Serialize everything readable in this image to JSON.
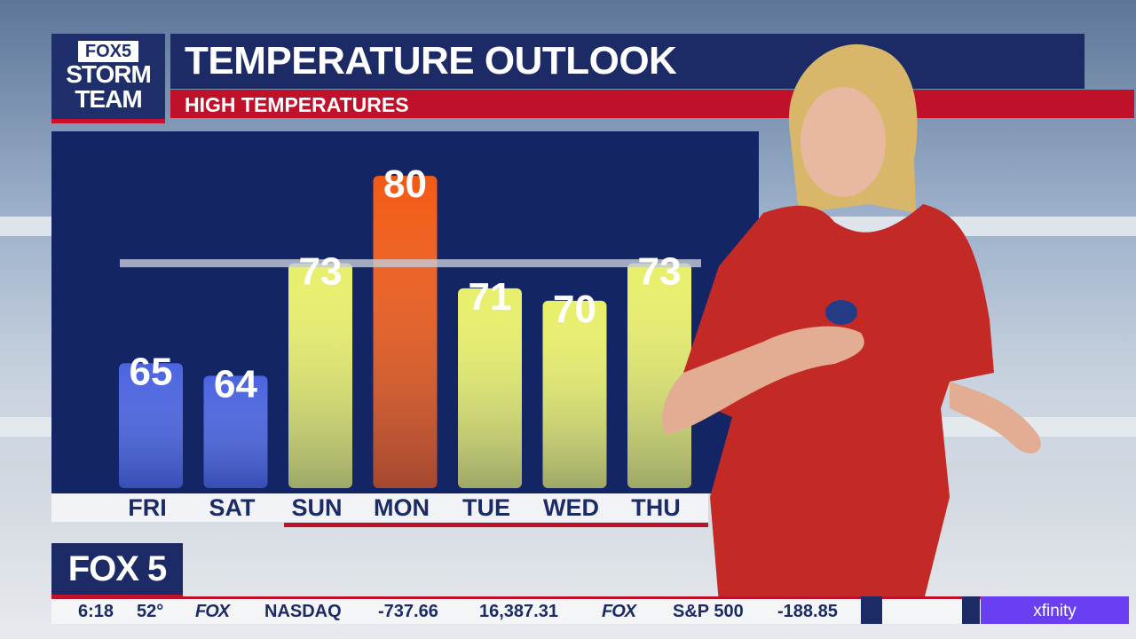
{
  "brand": {
    "fox5": "FOX5",
    "storm": "STORM",
    "team": "TEAM",
    "bug": "FOX 5"
  },
  "header": {
    "title": "TEMPERATURE OUTLOOK",
    "subtitle": "HIGH TEMPERATURES"
  },
  "chart_data": {
    "type": "bar",
    "title": "TEMPERATURE OUTLOOK",
    "subtitle": "HIGH TEMPERATURES",
    "categories": [
      "FRI",
      "SAT",
      "SUN",
      "MON",
      "TUE",
      "WED",
      "THU"
    ],
    "values": [
      65,
      64,
      73,
      80,
      71,
      70,
      73
    ],
    "bar_colors": [
      "#4a63e0",
      "#4a63e0",
      "#e8ef6a",
      "#f25a14",
      "#e8ef6a",
      "#e8ef6a",
      "#e8ef6a"
    ],
    "reference_line": 73,
    "ylim": [
      55,
      82
    ],
    "grid": false
  },
  "ticker": {
    "time": "6:18",
    "temp": "52°",
    "items": [
      {
        "logo": "FOX",
        "name": "NASDAQ",
        "change": "-737.66",
        "value": "16,387.31"
      },
      {
        "logo": "FOX",
        "name": "S&P 500",
        "change": "-188.85"
      }
    ],
    "sponsor": "xfinity"
  },
  "colors": {
    "navy": "#1c2b66",
    "red": "#c0112b",
    "cold": "#4a63e0",
    "mild": "#e8ef6a",
    "hot": "#f25a14"
  }
}
